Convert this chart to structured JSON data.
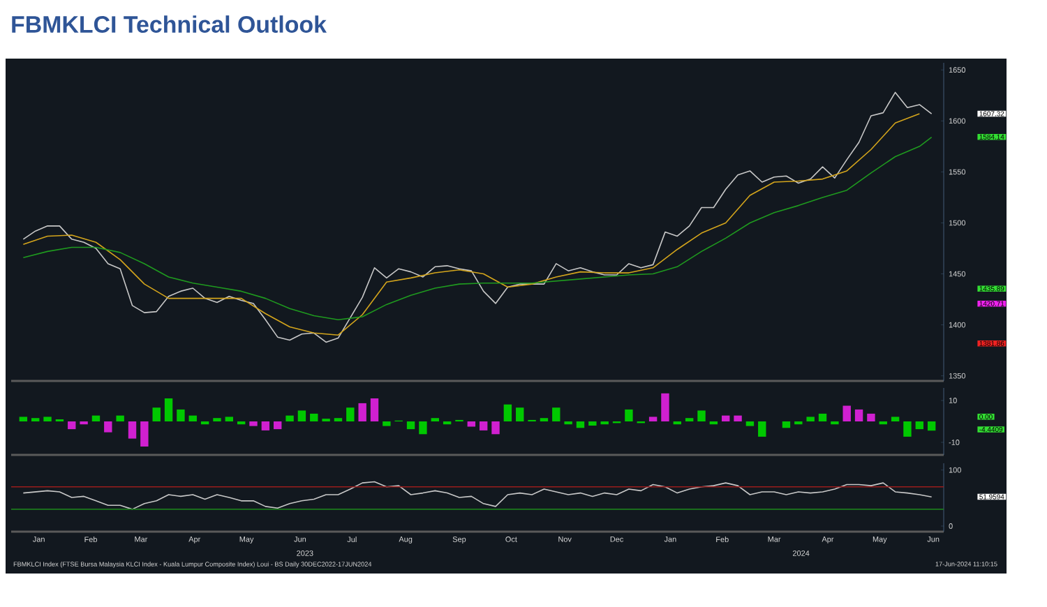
{
  "chart_data": [
    {
      "type": "line",
      "title": "FBMKLCI Technical Outlook",
      "xlim": [
        "2022-12-30",
        "2024-06-21"
      ],
      "ylim": [
        1345,
        1657
      ],
      "yticks": [
        1350,
        1400,
        1450,
        1500,
        1550,
        1600,
        1650
      ],
      "tick_labels": "y",
      "x": [
        "2023-01-06",
        "2023-01-13",
        "2023-01-20",
        "2023-01-27",
        "2023-02-03",
        "2023-02-10",
        "2023-02-17",
        "2023-02-24",
        "2023-03-03",
        "2023-03-10",
        "2023-03-17",
        "2023-03-24",
        "2023-03-31",
        "2023-04-07",
        "2023-04-14",
        "2023-04-21",
        "2023-04-28",
        "2023-05-05",
        "2023-05-12",
        "2023-05-19",
        "2023-05-26",
        "2023-06-02",
        "2023-06-09",
        "2023-06-16",
        "2023-06-23",
        "2023-06-30",
        "2023-07-07",
        "2023-07-14",
        "2023-07-21",
        "2023-07-28",
        "2023-08-04",
        "2023-08-11",
        "2023-08-18",
        "2023-08-25",
        "2023-09-01",
        "2023-09-08",
        "2023-09-15",
        "2023-09-22",
        "2023-09-29",
        "2023-10-06",
        "2023-10-13",
        "2023-10-20",
        "2023-10-27",
        "2023-11-03",
        "2023-11-10",
        "2023-11-17",
        "2023-11-24",
        "2023-12-01",
        "2023-12-08",
        "2023-12-15",
        "2023-12-22",
        "2023-12-29",
        "2024-01-05",
        "2024-01-12",
        "2024-01-19",
        "2024-01-26",
        "2024-02-02",
        "2024-02-09",
        "2024-02-16",
        "2024-02-23",
        "2024-03-01",
        "2024-03-08",
        "2024-03-15",
        "2024-03-22",
        "2024-03-29",
        "2024-04-05",
        "2024-04-12",
        "2024-04-19",
        "2024-04-26",
        "2024-05-03",
        "2024-05-10",
        "2024-05-17",
        "2024-05-24",
        "2024-05-31",
        "2024-06-07",
        "2024-06-14"
      ],
      "series": [
        {
          "color": "#c8c8c8",
          "values": [
            1484,
            1492,
            1497,
            1497,
            1484,
            1481,
            1475,
            1460,
            1455,
            1419,
            1412,
            1413,
            1428,
            1433,
            1436,
            1426,
            1422,
            1428,
            1424,
            1421,
            1405,
            1388,
            1385,
            1391,
            1392,
            1383,
            1387,
            1407,
            1427,
            1456,
            1446,
            1455,
            1452,
            1447,
            1457,
            1458,
            1455,
            1453,
            1433,
            1421,
            1437,
            1440,
            1440,
            1440,
            1460,
            1453,
            1456,
            1452,
            1449,
            1449,
            1460,
            1456,
            1459,
            1491,
            1487,
            1497,
            1515,
            1515,
            1533,
            1547,
            1551,
            1540,
            1545,
            1546,
            1539,
            1543,
            1555,
            1544,
            1562,
            1579,
            1605,
            1608,
            1628,
            1613,
            1616,
            1607
          ]
        },
        {
          "color": "#d4a51c",
          "x": [
            "2023-01-06",
            "2023-01-20",
            "2023-02-03",
            "2023-02-17",
            "2023-03-03",
            "2023-03-17",
            "2023-03-31",
            "2023-04-14",
            "2023-04-28",
            "2023-05-12",
            "2023-05-26",
            "2023-06-09",
            "2023-06-23",
            "2023-07-07",
            "2023-07-21",
            "2023-08-04",
            "2023-08-18",
            "2023-09-01",
            "2023-09-15",
            "2023-09-29",
            "2023-10-13",
            "2023-10-27",
            "2023-11-10",
            "2023-11-24",
            "2023-12-08",
            "2023-12-22",
            "2024-01-05",
            "2024-01-19",
            "2024-02-02",
            "2024-02-16",
            "2024-03-01",
            "2024-03-15",
            "2024-03-29",
            "2024-04-12",
            "2024-04-26",
            "2024-05-10",
            "2024-05-24",
            "2024-06-07"
          ],
          "values": [
            1479,
            1487,
            1488,
            1481,
            1464,
            1440,
            1426,
            1426,
            1426,
            1426,
            1411,
            1398,
            1392,
            1390,
            1410,
            1442,
            1446,
            1451,
            1454,
            1450,
            1437,
            1440,
            1447,
            1452,
            1451,
            1451,
            1456,
            1474,
            1490,
            1500,
            1527,
            1540,
            1541,
            1543,
            1551,
            1572,
            1598,
            1607
          ]
        },
        {
          "color": "#1f9a1f",
          "x": [
            "2023-01-06",
            "2023-01-20",
            "2023-02-03",
            "2023-02-17",
            "2023-03-03",
            "2023-03-17",
            "2023-03-31",
            "2023-04-14",
            "2023-04-28",
            "2023-05-12",
            "2023-05-26",
            "2023-06-09",
            "2023-06-23",
            "2023-07-07",
            "2023-07-21",
            "2023-08-04",
            "2023-08-18",
            "2023-09-01",
            "2023-09-15",
            "2023-09-29",
            "2023-10-13",
            "2023-10-27",
            "2023-11-10",
            "2023-11-24",
            "2023-12-08",
            "2023-12-22",
            "2024-01-05",
            "2024-01-19",
            "2024-02-02",
            "2024-02-16",
            "2024-03-01",
            "2024-03-15",
            "2024-03-29",
            "2024-04-12",
            "2024-04-26",
            "2024-05-10",
            "2024-05-24",
            "2024-06-07",
            "2024-06-14"
          ],
          "values": [
            1466,
            1472,
            1476,
            1476,
            1471,
            1460,
            1447,
            1441,
            1437,
            1433,
            1426,
            1416,
            1409,
            1405,
            1408,
            1420,
            1429,
            1436,
            1440,
            1441,
            1441,
            1441,
            1443,
            1445,
            1447,
            1449,
            1450,
            1457,
            1472,
            1485,
            1500,
            1510,
            1517,
            1525,
            1532,
            1549,
            1565,
            1575,
            1584
          ]
        }
      ],
      "annotations": [
        "1607.32",
        "1584.14",
        "1435.89",
        "1420.71",
        "1381.86"
      ]
    },
    {
      "type": "bar",
      "xlim": [
        "2022-12-30",
        "2024-06-21"
      ],
      "ylim": [
        -16,
        16
      ],
      "yticks": [
        -10,
        10
      ],
      "tick_labels": "y",
      "x": [
        "2023-01-06",
        "2023-01-13",
        "2023-01-20",
        "2023-01-27",
        "2023-02-03",
        "2023-02-10",
        "2023-02-17",
        "2023-02-24",
        "2023-03-03",
        "2023-03-10",
        "2023-03-17",
        "2023-03-24",
        "2023-03-31",
        "2023-04-07",
        "2023-04-14",
        "2023-04-21",
        "2023-04-28",
        "2023-05-05",
        "2023-05-12",
        "2023-05-19",
        "2023-05-26",
        "2023-06-02",
        "2023-06-09",
        "2023-06-16",
        "2023-06-23",
        "2023-06-30",
        "2023-07-07",
        "2023-07-14",
        "2023-07-21",
        "2023-07-28",
        "2023-08-04",
        "2023-08-11",
        "2023-08-18",
        "2023-08-25",
        "2023-09-01",
        "2023-09-08",
        "2023-09-15",
        "2023-09-22",
        "2023-09-29",
        "2023-10-06",
        "2023-10-13",
        "2023-10-20",
        "2023-10-27",
        "2023-11-03",
        "2023-11-10",
        "2023-11-17",
        "2023-11-24",
        "2023-12-01",
        "2023-12-08",
        "2023-12-15",
        "2023-12-22",
        "2023-12-29",
        "2024-01-05",
        "2024-01-12",
        "2024-01-19",
        "2024-01-26",
        "2024-02-02",
        "2024-02-09",
        "2024-02-16",
        "2024-02-23",
        "2024-03-01",
        "2024-03-08",
        "2024-03-15",
        "2024-03-22",
        "2024-03-29",
        "2024-04-05",
        "2024-04-12",
        "2024-04-19",
        "2024-04-26",
        "2024-05-03",
        "2024-05-10",
        "2024-05-17",
        "2024-05-24",
        "2024-05-31",
        "2024-06-07",
        "2024-06-14"
      ],
      "values": [
        2.2,
        1.6,
        2.2,
        1,
        -3.7,
        -1.4,
        2.8,
        -5.2,
        2.8,
        -8.2,
        -12,
        6.6,
        11,
        5.7,
        2.8,
        -1.4,
        1.6,
        2.2,
        -1.4,
        -2.2,
        -4.3,
        -3.7,
        2.8,
        5.2,
        3.7,
        1.3,
        1.6,
        6.6,
        8.7,
        11,
        -2.2,
        0.4,
        -3.7,
        -6.1,
        1.6,
        -1.4,
        0.7,
        -2.5,
        -4.3,
        -6.1,
        8.1,
        6.6,
        0.7,
        1.6,
        6.6,
        -1.4,
        -3.1,
        -2,
        -1.4,
        -0.8,
        5.7,
        -0.8,
        2.2,
        13.4,
        -1.4,
        1.6,
        5.2,
        -1.4,
        2.8,
        2.8,
        -2.2,
        -7.3,
        0,
        -3.1,
        -1.4,
        2.2,
        3.7,
        -1.4,
        7.5,
        5.7,
        3.7,
        -1.4,
        2.2,
        -7.3,
        -3.7,
        -4.4
      ],
      "colors": [
        "#00c800",
        "#00c800",
        "#00c800",
        "#00c800",
        "#d020d0",
        "#d020d0",
        "#00c800",
        "#d020d0",
        "#00c800",
        "#d020d0",
        "#d020d0",
        "#00c800",
        "#00c800",
        "#00c800",
        "#00c800",
        "#00c800",
        "#00c800",
        "#00c800",
        "#00c800",
        "#d020d0",
        "#d020d0",
        "#d020d0",
        "#00c800",
        "#00c800",
        "#00c800",
        "#00c800",
        "#00c800",
        "#00c800",
        "#d020d0",
        "#d020d0",
        "#00c800",
        "#00c800",
        "#00c800",
        "#00c800",
        "#00c800",
        "#00c800",
        "#00c800",
        "#d020d0",
        "#d020d0",
        "#d020d0",
        "#00c800",
        "#00c800",
        "#00c800",
        "#00c800",
        "#00c800",
        "#00c800",
        "#00c800",
        "#00c800",
        "#00c800",
        "#00c800",
        "#00c800",
        "#00c800",
        "#d020d0",
        "#d020d0",
        "#00c800",
        "#00c800",
        "#00c800",
        "#00c800",
        "#d020d0",
        "#d020d0",
        "#00c800",
        "#00c800",
        "#00c800",
        "#00c800",
        "#00c800",
        "#00c800",
        "#00c800",
        "#00c800",
        "#d020d0",
        "#d020d0",
        "#d020d0",
        "#00c800",
        "#00c800",
        "#00c800",
        "#00c800",
        "#00c800"
      ],
      "annotations": [
        "0.00",
        "-4.4409"
      ]
    },
    {
      "type": "line",
      "xlim": [
        "2022-12-30",
        "2024-06-21"
      ],
      "ylim": [
        -10,
        112
      ],
      "yticks": [
        0,
        100
      ],
      "color": "#c8c8c8",
      "xticks": [
        {
          "value": "2023-01-15",
          "label": "Jan"
        },
        {
          "value": "2023-02-14",
          "label": "Feb"
        },
        {
          "value": "2023-03-15",
          "label": "Mar"
        },
        {
          "value": "2023-04-15",
          "label": "Apr"
        },
        {
          "value": "2023-05-15",
          "label": "May"
        },
        {
          "value": "2023-06-15",
          "label": "Jun"
        },
        {
          "value": "2023-07-15",
          "label": "Jul"
        },
        {
          "value": "2023-08-15",
          "label": "Aug"
        },
        {
          "value": "2023-09-15",
          "label": "Sep"
        },
        {
          "value": "2023-10-15",
          "label": "Oct"
        },
        {
          "value": "2023-11-15",
          "label": "Nov"
        },
        {
          "value": "2023-12-15",
          "label": "Dec"
        },
        {
          "value": "2024-01-15",
          "label": "Jan"
        },
        {
          "value": "2024-02-14",
          "label": "Feb"
        },
        {
          "value": "2024-03-15",
          "label": "Mar"
        },
        {
          "value": "2024-04-15",
          "label": "Apr"
        },
        {
          "value": "2024-05-15",
          "label": "May"
        },
        {
          "value": "2024-06-15",
          "label": "Jun"
        }
      ],
      "x": [
        "2023-01-06",
        "2023-01-13",
        "2023-01-20",
        "2023-01-27",
        "2023-02-03",
        "2023-02-10",
        "2023-02-17",
        "2023-02-24",
        "2023-03-03",
        "2023-03-10",
        "2023-03-17",
        "2023-03-24",
        "2023-03-31",
        "2023-04-07",
        "2023-04-14",
        "2023-04-21",
        "2023-04-28",
        "2023-05-05",
        "2023-05-12",
        "2023-05-19",
        "2023-05-26",
        "2023-06-02",
        "2023-06-09",
        "2023-06-16",
        "2023-06-23",
        "2023-06-30",
        "2023-07-07",
        "2023-07-14",
        "2023-07-21",
        "2023-07-28",
        "2023-08-04",
        "2023-08-11",
        "2023-08-18",
        "2023-08-25",
        "2023-09-01",
        "2023-09-08",
        "2023-09-15",
        "2023-09-22",
        "2023-09-29",
        "2023-10-06",
        "2023-10-13",
        "2023-10-20",
        "2023-10-27",
        "2023-11-03",
        "2023-11-10",
        "2023-11-17",
        "2023-11-24",
        "2023-12-01",
        "2023-12-08",
        "2023-12-15",
        "2023-12-22",
        "2023-12-29",
        "2024-01-05",
        "2024-01-12",
        "2024-01-19",
        "2024-01-26",
        "2024-02-02",
        "2024-02-09",
        "2024-02-16",
        "2024-02-23",
        "2024-03-01",
        "2024-03-08",
        "2024-03-15",
        "2024-03-22",
        "2024-03-29",
        "2024-04-05",
        "2024-04-12",
        "2024-04-19",
        "2024-04-26",
        "2024-05-03",
        "2024-05-10",
        "2024-05-17",
        "2024-05-24",
        "2024-05-31",
        "2024-06-07",
        "2024-06-14"
      ],
      "values": [
        59,
        61,
        63,
        61,
        51,
        53,
        45,
        37,
        37,
        30,
        40,
        45,
        56,
        53,
        56,
        48,
        56,
        51,
        45,
        45,
        35,
        32,
        40,
        45,
        48,
        56,
        56,
        66,
        77,
        79,
        70,
        72,
        56,
        59,
        63,
        59,
        51,
        53,
        40,
        35,
        56,
        59,
        56,
        66,
        61,
        56,
        59,
        53,
        59,
        56,
        66,
        63,
        74,
        70,
        59,
        66,
        70,
        72,
        77,
        72,
        56,
        61,
        61,
        56,
        61,
        59,
        61,
        66,
        74,
        74,
        72,
        77,
        61,
        59,
        56,
        52
      ],
      "ref_lines": [
        {
          "axis": "y",
          "value": 70,
          "color": "#9a1c1c"
        },
        {
          "axis": "y",
          "value": 30,
          "color": "#1c7a1c"
        }
      ],
      "annotations": [
        "51.9594",
        "2023",
        "2024",
        "FBMKLCI Index (FTSE Bursa Malaysia KLCI Index - Kuala Lumpur Composite Index) Loui - BS  Daily 30DEC2022-17JUN2024",
        "17-Jun-2024 11:10:15"
      ]
    }
  ]
}
